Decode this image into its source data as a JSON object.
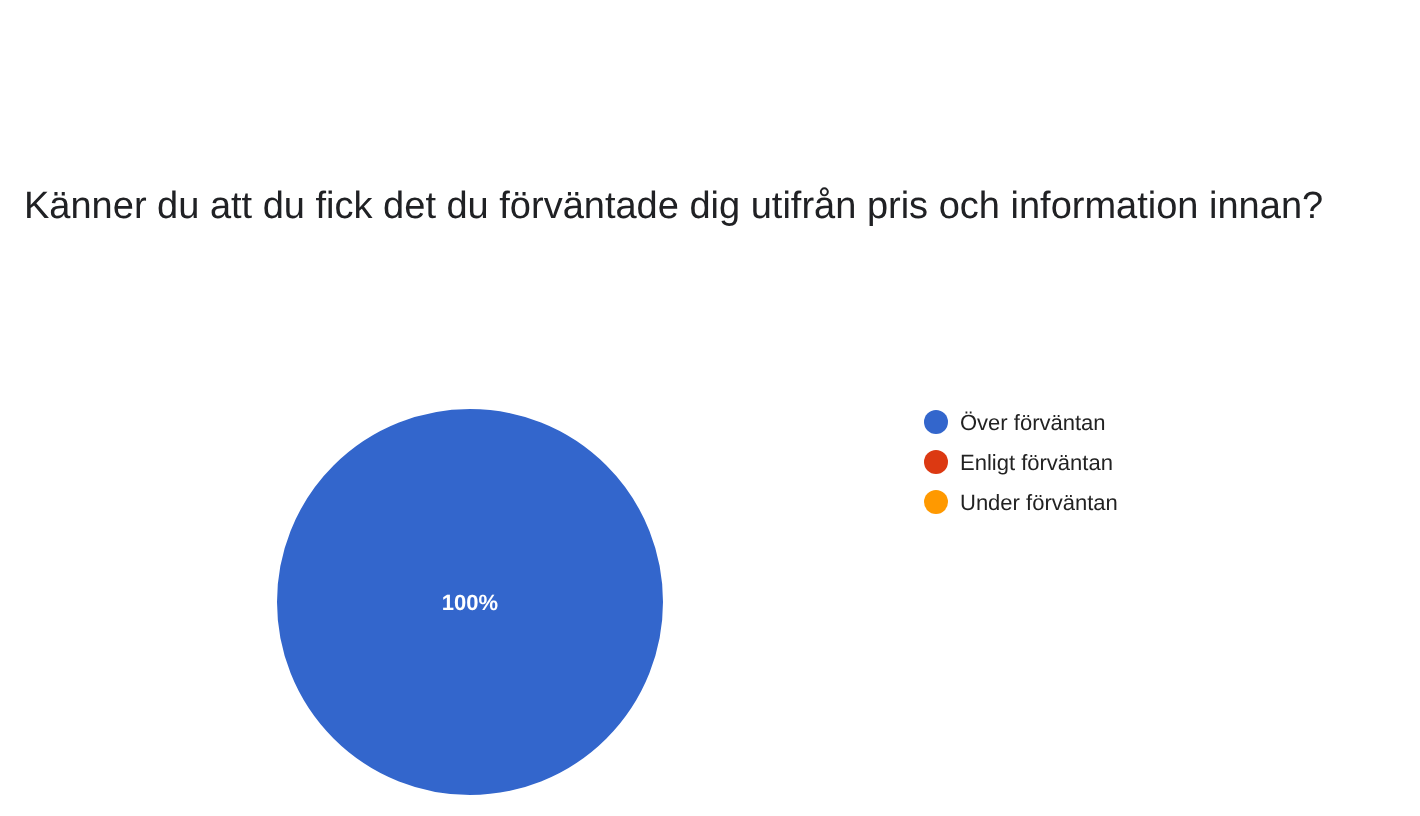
{
  "chart_data": {
    "type": "pie",
    "title": "Känner du att du fick det du förväntade dig utifrån pris och information innan?",
    "categories": [
      "Över förväntan",
      "Enligt förväntan",
      "Under förväntan"
    ],
    "values": [
      100,
      0,
      0
    ],
    "colors": [
      "#3366cc",
      "#dc3912",
      "#ff9900"
    ],
    "value_labels": [
      "100%",
      null,
      null
    ],
    "legend": "right"
  }
}
